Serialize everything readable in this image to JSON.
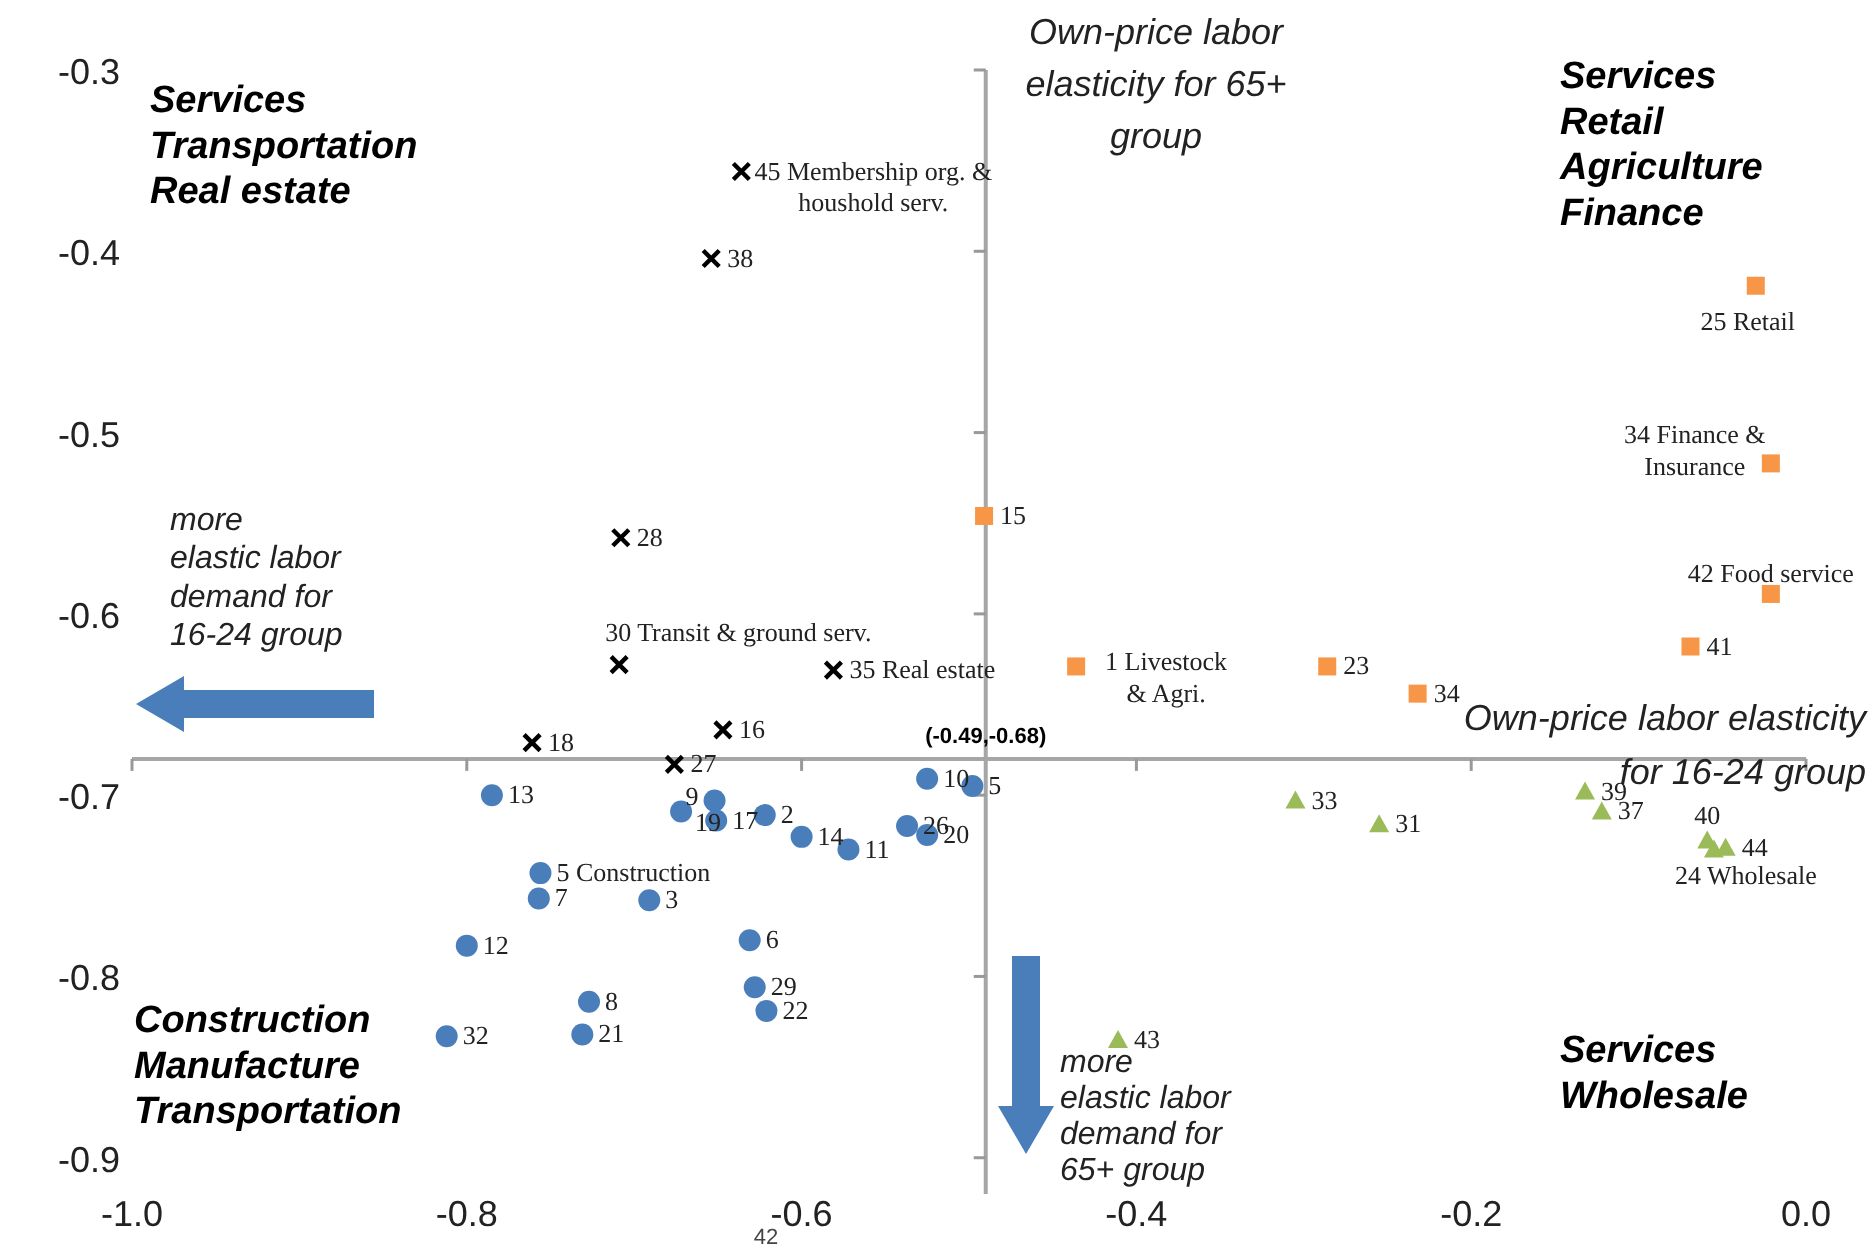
{
  "chart_data": {
    "type": "scatter",
    "xlabel": "Own-price labor elasticity\nfor 16-24 group",
    "ylabel": "Own-price labor\nelasticity for 65+\ngroup",
    "xlim": [
      -1,
      0
    ],
    "xticks": [
      {
        "value": -1,
        "label": "-1.0"
      },
      -0.8,
      -0.6,
      -0.4,
      -0.2,
      {
        "value": 0,
        "label": "0.0"
      }
    ],
    "ylim": [
      -0.92,
      -0.3
    ],
    "yticks": [
      -0.3,
      -0.4,
      -0.5,
      -0.6,
      -0.7,
      -0.8,
      -0.9
    ],
    "grid": false,
    "ref_lines": [
      {
        "axis": "x",
        "value": -0.49,
        "color": "#a6a6a6"
      },
      {
        "axis": "y",
        "value": -0.68,
        "color": "#a6a6a6"
      }
    ],
    "series": [
      {
        "color": "#4a7ebb",
        "marker": "circle",
        "x": [
          -0.785,
          -0.652,
          -0.672,
          -0.651,
          -0.622,
          -0.6,
          -0.572,
          -0.537,
          -0.525,
          -0.525,
          -0.498,
          -0.756,
          -0.757,
          -0.691,
          -0.8,
          -0.631,
          -0.628,
          -0.621,
          -0.727,
          -0.731,
          -0.812
        ],
        "values": [
          -0.7,
          -0.703,
          -0.709,
          -0.714,
          -0.711,
          -0.723,
          -0.73,
          -0.717,
          -0.722,
          -0.691,
          -0.695,
          -0.743,
          -0.757,
          -0.758,
          -0.783,
          -0.78,
          -0.806,
          -0.819,
          -0.814,
          -0.832,
          -0.833
        ]
      },
      {
        "color": "#000000",
        "marker": "cross",
        "x": [
          -0.761,
          -0.647,
          -0.676,
          -0.581,
          -0.636,
          -0.654,
          -0.708,
          -0.709
        ],
        "values": [
          -0.671,
          -0.664,
          -0.683,
          -0.631,
          -0.356,
          -0.404,
          -0.558,
          -0.628
        ]
      },
      {
        "color": "#f79646",
        "marker": "square",
        "x": [
          -0.491,
          -0.436,
          -0.286,
          -0.232,
          -0.069,
          -0.021,
          -0.03,
          -0.021
        ],
        "values": [
          -0.546,
          -0.629,
          -0.629,
          -0.644,
          -0.618,
          -0.589,
          -0.419,
          -0.517
        ]
      },
      {
        "color": "#9bbb59",
        "marker": "triangle",
        "x": [
          -0.305,
          -0.255,
          -0.132,
          -0.122,
          -0.059,
          -0.055,
          -0.048,
          -0.411
        ],
        "values": [
          -0.703,
          -0.716,
          -0.698,
          -0.709,
          -0.725,
          -0.73,
          -0.729,
          -0.835
        ]
      }
    ],
    "annotations": [
      "Services\nTransportation\nReal estate",
      "Services\nRetail\nAgriculture\nFinance",
      "Construction\nManufacture\nTransportation",
      "Services\nWholesale",
      "more\nelastic labor\ndemand for\n16-24 group",
      "more\nelastic labor\ndemand for\n65+ group",
      {
        "text": "(-0.49,-0.68)",
        "x": -0.49,
        "y": -0.68
      },
      "42",
      {
        "text": "13",
        "x": -0.785,
        "y": -0.7
      },
      {
        "text": "9",
        "x": -0.652,
        "y": -0.703
      },
      {
        "text": "19",
        "x": -0.672,
        "y": -0.709
      },
      {
        "text": "17",
        "x": -0.651,
        "y": -0.714
      },
      {
        "text": "2",
        "x": -0.622,
        "y": -0.711
      },
      {
        "text": "14",
        "x": -0.6,
        "y": -0.723
      },
      {
        "text": "11",
        "x": -0.572,
        "y": -0.73
      },
      {
        "text": "26",
        "x": -0.537,
        "y": -0.717
      },
      {
        "text": "20",
        "x": -0.525,
        "y": -0.722
      },
      {
        "text": "10",
        "x": -0.525,
        "y": -0.691
      },
      {
        "text": "5",
        "x": -0.498,
        "y": -0.695
      },
      {
        "text": "5 Construction",
        "x": -0.756,
        "y": -0.743
      },
      {
        "text": "7",
        "x": -0.757,
        "y": -0.757
      },
      {
        "text": "3",
        "x": -0.691,
        "y": -0.758
      },
      {
        "text": "12",
        "x": -0.8,
        "y": -0.783
      },
      {
        "text": "6",
        "x": -0.631,
        "y": -0.78
      },
      {
        "text": "29",
        "x": -0.628,
        "y": -0.806
      },
      {
        "text": "22",
        "x": -0.621,
        "y": -0.819
      },
      {
        "text": "8",
        "x": -0.727,
        "y": -0.814
      },
      {
        "text": "21",
        "x": -0.731,
        "y": -0.832
      },
      {
        "text": "32",
        "x": -0.812,
        "y": -0.833
      },
      {
        "text": "18",
        "x": -0.761,
        "y": -0.671
      },
      {
        "text": "16",
        "x": -0.647,
        "y": -0.664
      },
      {
        "text": "27",
        "x": -0.676,
        "y": -0.683
      },
      {
        "text": "35 Real estate",
        "x": -0.581,
        "y": -0.631
      },
      {
        "text": "45 Membership org. &\nhoushold serv.",
        "x": -0.636,
        "y": -0.356
      },
      {
        "text": "38",
        "x": -0.654,
        "y": -0.404
      },
      {
        "text": "28",
        "x": -0.708,
        "y": -0.558
      },
      {
        "text": "30 Transit & ground serv.",
        "x": -0.709,
        "y": -0.628
      },
      {
        "text": "15",
        "x": -0.491,
        "y": -0.546
      },
      {
        "text": "1  Livestock\n& Agri.",
        "x": -0.436,
        "y": -0.629
      },
      {
        "text": "23",
        "x": -0.286,
        "y": -0.629
      },
      {
        "text": "34",
        "x": -0.232,
        "y": -0.644
      },
      {
        "text": "41",
        "x": -0.069,
        "y": -0.618
      },
      {
        "text": "42 Food service",
        "x": -0.021,
        "y": -0.589
      },
      {
        "text": "25 Retail",
        "x": -0.03,
        "y": -0.419
      },
      {
        "text": "34 Finance &\nInsurance",
        "x": -0.021,
        "y": -0.517
      },
      {
        "text": "33",
        "x": -0.305,
        "y": -0.703
      },
      {
        "text": "31",
        "x": -0.255,
        "y": -0.716
      },
      {
        "text": "39",
        "x": -0.132,
        "y": -0.698
      },
      {
        "text": "37",
        "x": -0.122,
        "y": -0.709
      },
      {
        "text": "40",
        "x": -0.059,
        "y": -0.725
      },
      {
        "text": "24 Wholesale",
        "x": -0.055,
        "y": -0.73
      },
      {
        "text": "44",
        "x": -0.048,
        "y": -0.729
      },
      {
        "text": "43",
        "x": -0.411,
        "y": -0.835
      }
    ]
  }
}
